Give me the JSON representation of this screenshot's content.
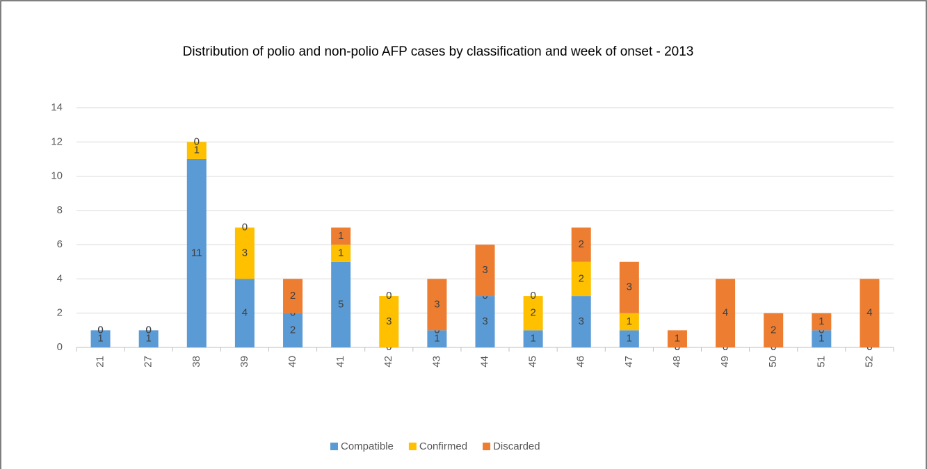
{
  "chart_data": {
    "type": "stacked_bar",
    "title": "Distribution of polio and non-polio AFP cases by classification and week of onset - 2013",
    "categories": [
      "21",
      "27",
      "38",
      "39",
      "40",
      "41",
      "42",
      "43",
      "44",
      "45",
      "46",
      "47",
      "48",
      "49",
      "50",
      "51",
      "52"
    ],
    "series": [
      {
        "name": "Compatible",
        "color": "#5b9bd5",
        "values": [
          1,
          1,
          11,
          4,
          2,
          5,
          0,
          1,
          3,
          1,
          3,
          1,
          0,
          0,
          0,
          1,
          0
        ]
      },
      {
        "name": "Confirmed",
        "color": "#ffc000",
        "values": [
          0,
          0,
          1,
          3,
          0,
          1,
          3,
          0,
          0,
          2,
          2,
          1,
          0,
          0,
          0,
          0,
          0
        ]
      },
      {
        "name": "Discarded",
        "color": "#ed7d31",
        "values": [
          0,
          0,
          0,
          0,
          2,
          1,
          0,
          3,
          3,
          0,
          2,
          3,
          1,
          4,
          2,
          1,
          4
        ]
      }
    ],
    "ylim": [
      0,
      14
    ],
    "yticks": [
      0,
      2,
      4,
      6,
      8,
      10,
      12,
      14
    ],
    "grid": true,
    "legend": "bottom"
  }
}
